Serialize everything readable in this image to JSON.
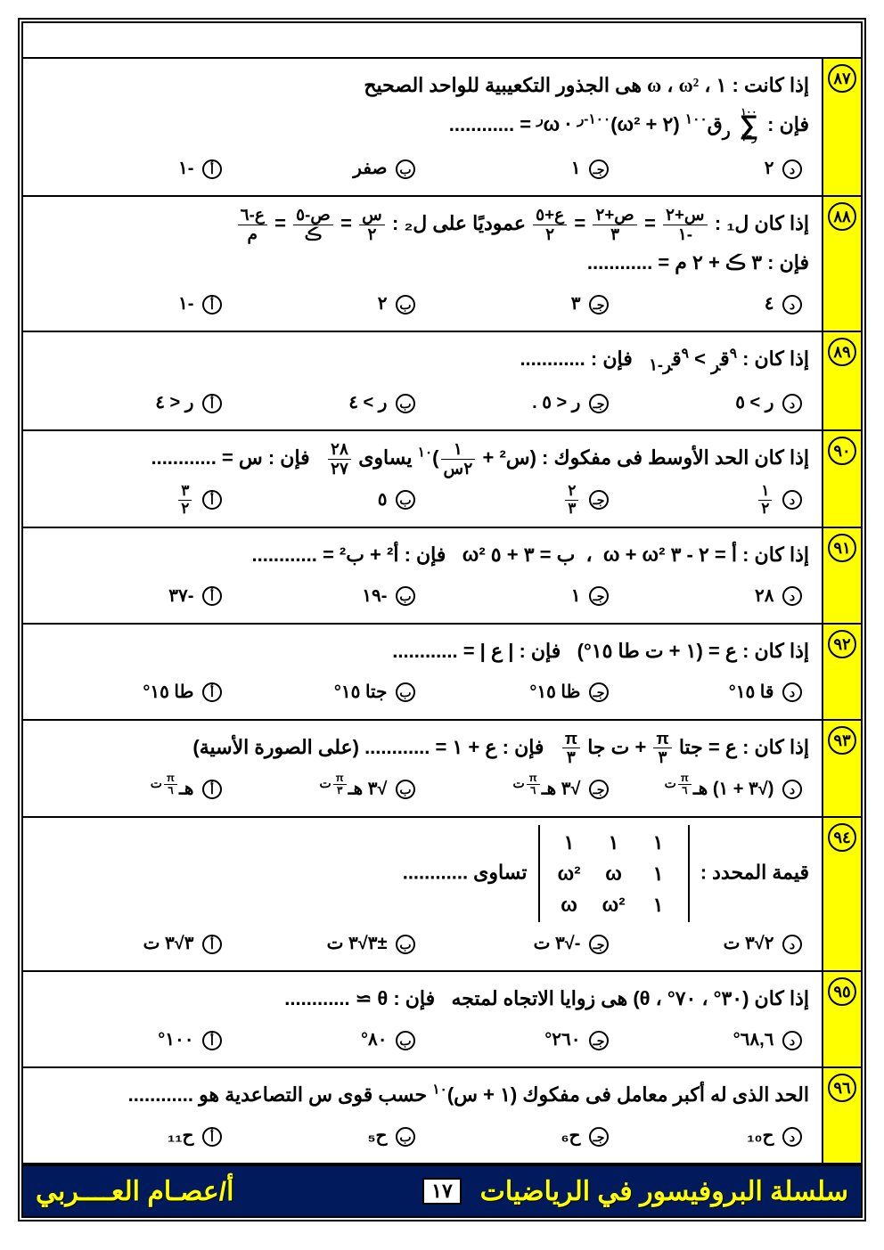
{
  "footer": {
    "series": "سلسلة البروفيسور في الرياضيات",
    "author": "أ/عصـام العــــربي",
    "page_number": "١٧"
  },
  "option_letters": {
    "a": "أ",
    "b": "ب",
    "c": "جـ",
    "d": "د"
  },
  "questions": [
    {
      "num": "٨٧",
      "stem": "إذا كانت : ١ ، ω ، ω² هى الجذور التكعيبية للواحد الصحيح\nفإن : ∑ₘ₌₁¹⁰⁰ (٢ + ω²)ᴿ · ωᴿ = ............",
      "stem_html": "إذا كانت : ١ ، <span class='eq'>ω</span> ، <span class='eq'>ω²</span> هى الجذور التكعيبية للواحد الصحيح<br>فإن : <span class='sigma-wrap'>١٠٠<br><span class='sigma'>∑</span><br>ر=١</span> <sub>ر</sub>ق<sup>١٠٠</sup> (٢ + ω²)<sup>١٠٠-ر</sup> · ω<sup>ر</sup> = ............",
      "options": {
        "a": "-١",
        "b": "صفر",
        "c": "١",
        "d": "٢"
      }
    },
    {
      "num": "٨٨",
      "stem_html": "إذا كان ل₁ : <span class='frac'><span class='num'>س+٢</span><span class='den'>-١</span></span> = <span class='frac'><span class='num'>ص+٢</span><span class='den'>٣</span></span> = <span class='frac'><span class='num'>ع+٥</span><span class='den'>٢</span></span> عموديًا على ل₂ : <span class='frac'><span class='num'>س</span><span class='den'>٢</span></span> = <span class='frac'><span class='num'>ص-٥</span><span class='den'>ڪ</span></span> = <span class='frac'><span class='num'>ع-٦</span><span class='den'>م</span></span><br>فإن : ٣ ڪ + ٢ م = ............",
      "options": {
        "a": "-١",
        "b": "٢",
        "c": "٣",
        "d": "٤"
      }
    },
    {
      "num": "٨٩",
      "stem_html": "إذا كان : <sup>٩</sup>ق<sub>ر</sub> > <sup>٩</sup>ق<sub>ر-١</sub> &nbsp; فإن : ............",
      "options": {
        "a": "ر < ٤",
        "b": "ر > ٤",
        "c": "ر < ٥ .",
        "d": "ر > ٥"
      }
    },
    {
      "num": "٩٠",
      "stem_html": "إذا كان الحد الأوسط فى مفكوك : (س² + <span class='frac'><span class='num'>١</span><span class='den'>٢س</span></span>)<sup>١٠</sup> يساوى <span class='frac'><span class='num'>٢٨</span><span class='den'>٢٧</span></span> &nbsp; فإن : س = ............",
      "options": {
        "a": "<span class='frac'><span class='num'>٣</span><span class='den'>٢</span></span>",
        "b": "٥",
        "c": "<span class='frac'><span class='num'>٢</span><span class='den'>٣</span></span>",
        "d": "<span class='frac'><span class='num'>١</span><span class='den'>٢</span></span>"
      }
    },
    {
      "num": "٩١",
      "stem_html": "إذا كان : أ = ٢ - ٣ ω + ω² &nbsp;،&nbsp; ب = ٣ + ٥ ω² &nbsp; فإن : أ² + ب² = ............",
      "options": {
        "a": "-٣٧",
        "b": "-١٩",
        "c": "١",
        "d": "٢٨"
      }
    },
    {
      "num": "٩٢",
      "stem_html": "إذا كان : ع = (١ + ت طا ١٥°) &nbsp; فإن : | ع | = ............",
      "options": {
        "a": "طا ١٥°",
        "b": "جتا ١٥°",
        "c": "ظا ١٥°",
        "d": "قا ١٥°"
      }
    },
    {
      "num": "٩٣",
      "stem_html": "إذا كان : ع = جتا <span class='frac'><span class='num'>π</span><span class='den'>٣</span></span> + ت جا <span class='frac'><span class='num'>π</span><span class='den'>٣</span></span> &nbsp; فإن : ع + ١ = ............ (على الصورة الأسية)",
      "options": {
        "a": "هـ<sup><span class='frac'><span class='num'>π</span><span class='den'>٦</span></span>ت</sup>",
        "b": "√٣ هـ<sup><span class='frac'><span class='num'>π</span><span class='den'>٣</span></span>ت</sup>",
        "c": "√٣ هـ<sup><span class='frac'><span class='num'>π</span><span class='den'>٦</span></span>ت</sup>",
        "d": "(√٣ + ١) هـ<sup><span class='frac'><span class='num'>π</span><span class='den'>٦</span></span>ت</sup>"
      }
    },
    {
      "num": "٩٤",
      "stem_html": "قيمة المحدد : <span class='matrix'><span>١</span><span>١</span><span>١</span><span>١</span><span>ω</span><span>ω²</span><span>١</span><span>ω²</span><span>ω</span></span> تساوى ............",
      "options": {
        "a": "٣√٣ ت",
        "b": "±٣√٣ ت",
        "c": "-√٣ ت",
        "d": "٢√٣ ت"
      }
    },
    {
      "num": "٩٥",
      "stem_html": "إذا كان (٣٠° ، ٧٠° ، θ) هى زوايا الاتجاه لمتجه &nbsp; فإن : θ ≃ ............",
      "options": {
        "a": "١٠٠°",
        "b": "٨٠°",
        "c": "٢٦٠°",
        "d": "٦٨,٦°"
      }
    },
    {
      "num": "٩٦",
      "stem_html": "الحد الذى له أكبر معامل فى مفكوك (١ + س)<sup>١٠</sup> حسب قوى س التصاعدية هو ............",
      "options": {
        "a": "ح₁₁",
        "b": "ح₅",
        "c": "ح₆",
        "d": "ح₁₀"
      }
    }
  ]
}
